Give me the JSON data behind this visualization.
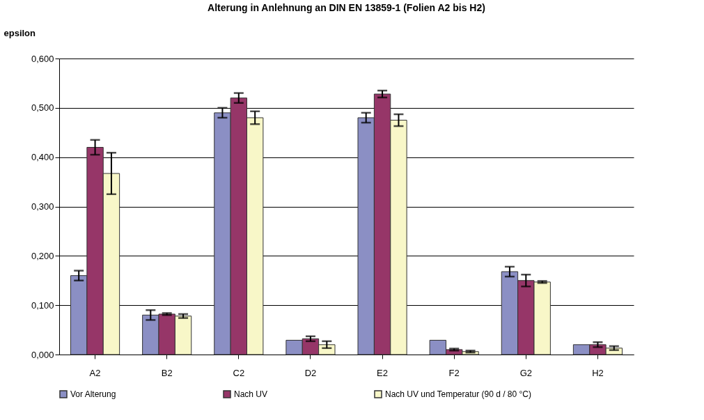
{
  "chart_data": {
    "type": "bar",
    "title": "Alterung in Anlehnung an DIN EN 13859-1 (Folien A2 bis H2)",
    "ylabel": "epsilon",
    "categories": [
      "A2",
      "B2",
      "C2",
      "D2",
      "E2",
      "F2",
      "G2",
      "H2"
    ],
    "series": [
      {
        "name": "Vor Alterung",
        "color": "#8b8fc4",
        "values": [
          0.16,
          0.08,
          0.49,
          0.029,
          0.48,
          0.029,
          0.168,
          0.02
        ],
        "errors": [
          0.01,
          0.01,
          0.01,
          null,
          0.01,
          null,
          0.01,
          null
        ]
      },
      {
        "name": "Nach UV",
        "color": "#963668",
        "values": [
          0.42,
          0.082,
          0.52,
          0.032,
          0.528,
          0.01,
          0.15,
          0.02
        ],
        "errors": [
          0.015,
          0.002,
          0.01,
          0.005,
          0.007,
          0.002,
          0.012,
          0.005
        ]
      },
      {
        "name": "Nach UV und Temperatur  (90 d / 80 °C)",
        "color": "#f8f7c8",
        "values": [
          0.367,
          0.078,
          0.48,
          0.02,
          0.475,
          0.006,
          0.147,
          0.013
        ],
        "errors": [
          0.042,
          0.004,
          0.013,
          0.007,
          0.012,
          0.002,
          0.002,
          0.004
        ]
      }
    ],
    "ylim": [
      0,
      0.6
    ],
    "yticks": [
      {
        "value": 0,
        "label": "0,000"
      },
      {
        "value": 0.1,
        "label": "0,100"
      },
      {
        "value": 0.2,
        "label": "0,200"
      },
      {
        "value": 0.3,
        "label": "0,300"
      },
      {
        "value": 0.4,
        "label": "0,400"
      },
      {
        "value": 0.5,
        "label": "0,500"
      },
      {
        "value": 0.6,
        "label": "0,600"
      }
    ],
    "grid": "y",
    "legend": "bottom"
  }
}
